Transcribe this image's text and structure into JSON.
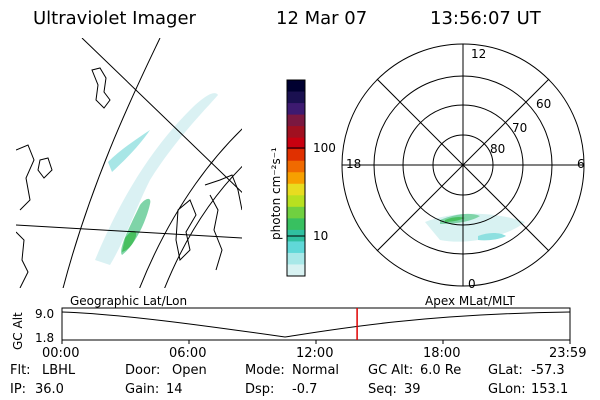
{
  "header": {
    "instrument": "Ultraviolet Imager",
    "date": "12 Mar 07",
    "time": "13:56:07 UT"
  },
  "colorbar": {
    "unit_label": "photon cm⁻²s⁻¹",
    "ticks": [
      "100",
      "10"
    ],
    "colors": [
      "#000030",
      "#1a1050",
      "#3d1a70",
      "#7a1840",
      "#a01020",
      "#c80010",
      "#e03000",
      "#f06a00",
      "#f7a000",
      "#e8dc20",
      "#b8e020",
      "#70d040",
      "#38c060",
      "#30c0a0",
      "#60d8d8",
      "#a8e8e8",
      "#d8f2f2"
    ]
  },
  "polar": {
    "hour_labels": [
      "12",
      "18",
      "6",
      "0"
    ],
    "lat_labels": [
      "60",
      "70",
      "80"
    ]
  },
  "timeline": {
    "left_label": "Geographic Lat/Lon",
    "right_label": "Apex MLat/MLT",
    "ylabel": "GC Alt",
    "ymax": "9.0",
    "ymin": "1.8",
    "xticks": [
      "00:00",
      "06:00",
      "12:00",
      "18:00",
      "23:59"
    ],
    "current_time_fraction": 0.581,
    "marker_color": "#e00000"
  },
  "info": {
    "flt_label": "Flt:",
    "flt_value": "LBHL",
    "door_label": "Door:",
    "door_value": "Open",
    "mode_label": "Mode:",
    "mode_value": "Normal",
    "gcalt_label": "GC Alt:",
    "gcalt_value": "6.0 Re",
    "glat_label": "GLat:",
    "glat_value": "-57.3",
    "ip_label": "IP:",
    "ip_value": "36.0",
    "gain_label": "Gain:",
    "gain_value": "14",
    "dsp_label": "Dsp:",
    "dsp_value": "-0.7",
    "seq_label": "Seq:",
    "seq_value": "39",
    "glon_label": "GLon:",
    "glon_value": "153.1"
  }
}
